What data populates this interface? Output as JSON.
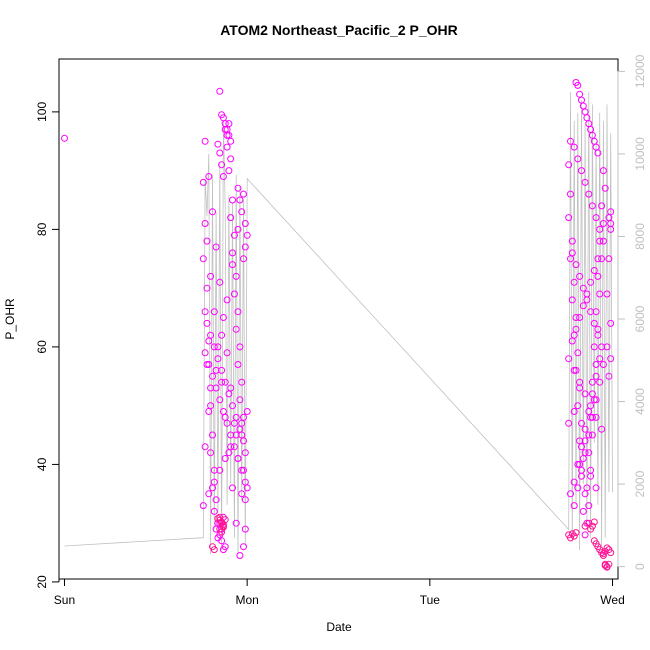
{
  "chart_data": {
    "type": "scatter",
    "title": "ATOM2 Northeast_Pacific_2 P_OHR",
    "xlabel": "Date",
    "ylabel": "P_OHR",
    "xlim": [
      -0.03,
      3.03
    ],
    "ylim": [
      20.5,
      109
    ],
    "y2lim": [
      -300,
      12300
    ],
    "x_ticks": [
      {
        "value": 0,
        "label": "Sun"
      },
      {
        "value": 1,
        "label": "Mon"
      },
      {
        "value": 2,
        "label": "Tue"
      },
      {
        "value": 3,
        "label": "Wed"
      }
    ],
    "y_ticks": [
      20,
      40,
      60,
      80,
      100
    ],
    "y2_ticks": [
      0,
      2000,
      4000,
      6000,
      8000,
      10000,
      12000
    ],
    "colors": {
      "points": "#ff00ff",
      "points_late": "#ff1493",
      "line": "#c0c0c0",
      "axis": "#000000",
      "right_axis": "#c0c0c0"
    },
    "series": [
      {
        "kind": "points",
        "color": "#ff00ff",
        "x": [
          0.0,
          0.76,
          0.77,
          0.76,
          0.78,
          0.77,
          0.79,
          0.78,
          0.8,
          0.79,
          0.81,
          0.8,
          0.82,
          0.81,
          0.83,
          0.82,
          0.84,
          0.83,
          0.85,
          0.84,
          0.86,
          0.85,
          0.87,
          0.86,
          0.88,
          0.87,
          0.89,
          0.88,
          0.9,
          0.89,
          0.91,
          0.9,
          0.92,
          0.91,
          0.93,
          0.92,
          0.94,
          0.93,
          0.95,
          0.94,
          0.96,
          0.95,
          0.97,
          0.96,
          0.98,
          0.97,
          0.99,
          0.98,
          1.0,
          0.99,
          0.77,
          0.79,
          0.81,
          0.83,
          0.85,
          0.87,
          0.89,
          0.91,
          0.93,
          0.95,
          0.97,
          0.99,
          0.78,
          0.8,
          0.82,
          0.84,
          0.86,
          0.88,
          0.9,
          0.92,
          0.94,
          0.96,
          0.98,
          0.77,
          0.8,
          0.83,
          0.86,
          0.89,
          0.92,
          0.95,
          0.98,
          0.85,
          0.86,
          0.87,
          0.88,
          0.89,
          0.9,
          0.91,
          0.84,
          0.85,
          0.86,
          0.87,
          0.95,
          0.96,
          0.97,
          0.99,
          1.0,
          0.99,
          0.98,
          0.77,
          0.79,
          0.81,
          0.83,
          0.85,
          0.87,
          0.89,
          0.91,
          0.93,
          0.95,
          0.97,
          0.99,
          0.78,
          0.8,
          0.82,
          0.84,
          0.86,
          0.88,
          0.9,
          0.92,
          0.94,
          0.96,
          0.98,
          0.76,
          0.79,
          0.82,
          0.85,
          0.88,
          0.91,
          0.94,
          0.97,
          1.0
        ],
        "y": [
          95.5,
          88,
          81,
          75,
          70,
          66,
          61,
          57,
          53,
          49,
          45,
          42,
          39,
          36,
          34,
          32,
          30,
          29,
          28,
          27.5,
          27,
          30,
          31,
          29,
          26,
          25.5,
          94,
          97,
          98,
          96,
          92,
          90,
          85,
          82,
          79,
          76,
          72,
          69,
          66,
          63,
          60,
          57,
          54,
          51,
          48,
          45,
          42,
          39,
          36,
          34,
          95,
          89,
          83,
          77,
          71,
          65,
          59,
          53,
          47,
          41,
          35,
          29,
          78,
          72,
          66,
          60,
          54,
          48,
          42,
          36,
          30,
          24.5,
          26,
          43,
          50,
          56,
          62,
          68,
          74,
          80,
          86,
          103.5,
          99.5,
          99,
          98,
          97,
          96,
          95,
          94.5,
          93,
          91,
          89,
          87,
          85,
          83,
          81,
          79,
          77,
          75,
          59,
          57,
          55,
          53,
          51,
          49,
          47,
          45,
          43,
          41,
          39,
          37,
          64,
          62,
          60,
          58,
          56,
          54,
          52,
          50,
          48,
          46,
          44,
          33,
          35,
          37,
          39,
          41,
          43,
          45,
          47,
          49
        ]
      },
      {
        "kind": "points",
        "color": "#ff00ff",
        "x": [
          2.76,
          2.77,
          2.76,
          2.78,
          2.77,
          2.79,
          2.78,
          2.8,
          2.79,
          2.81,
          2.8,
          2.82,
          2.81,
          2.83,
          2.82,
          2.84,
          2.83,
          2.85,
          2.84,
          2.86,
          2.85,
          2.87,
          2.86,
          2.88,
          2.87,
          2.89,
          2.88,
          2.9,
          2.89,
          2.91,
          2.9,
          2.92,
          2.91,
          2.93,
          2.92,
          2.94,
          2.93,
          2.95,
          2.94,
          2.96,
          2.95,
          2.77,
          2.79,
          2.81,
          2.83,
          2.85,
          2.87,
          2.89,
          2.91,
          2.93,
          2.95,
          2.78,
          2.8,
          2.82,
          2.84,
          2.86,
          2.88,
          2.9,
          2.92,
          2.94,
          2.76,
          2.79,
          2.82,
          2.85,
          2.88,
          2.91,
          2.94,
          2.8,
          2.81,
          2.82,
          2.83,
          2.84,
          2.85,
          2.86,
          2.87,
          2.88,
          2.89,
          2.9,
          2.91,
          2.92,
          2.79,
          2.81,
          2.83,
          2.85,
          2.87,
          2.89,
          2.91,
          2.93,
          2.95,
          2.97,
          2.99,
          2.98,
          2.99,
          2.99,
          2.98,
          2.97,
          2.99,
          2.99,
          2.98,
          2.77,
          2.79,
          2.81,
          2.83,
          2.85,
          2.87,
          2.89,
          2.91,
          2.93,
          2.78,
          2.8,
          2.82,
          2.84,
          2.86,
          2.88,
          2.9,
          2.92,
          2.76,
          2.79,
          2.82,
          2.85,
          2.88,
          2.91
        ],
        "y": [
          91,
          86,
          82,
          78,
          75,
          71,
          68,
          65,
          62,
          59,
          56,
          53,
          50,
          47,
          44,
          41,
          38,
          35,
          32,
          30,
          28,
          33,
          36,
          39,
          42,
          45,
          48,
          51,
          54,
          57,
          60,
          63,
          66,
          69,
          72,
          75,
          78,
          81,
          84,
          87,
          90,
          95,
          94,
          92,
          90,
          88,
          86,
          84,
          82,
          80,
          78,
          76,
          74,
          72,
          70,
          68,
          66,
          64,
          62,
          60,
          58,
          56,
          54,
          52,
          50,
          48,
          46,
          105,
          104.5,
          103,
          102,
          101,
          100,
          99,
          98,
          97,
          96,
          95,
          94,
          93,
          33,
          36,
          39,
          42,
          45,
          48,
          51,
          54,
          57,
          60,
          83,
          82,
          81,
          80,
          75,
          69,
          64,
          58,
          55,
          35,
          37,
          40,
          43,
          46,
          49,
          52,
          55,
          58,
          61,
          63,
          65,
          67,
          69,
          71,
          73,
          75,
          47,
          49,
          40,
          44,
          38,
          36
        ]
      },
      {
        "kind": "points",
        "color": "#ff1493",
        "x": [
          0.85,
          0.86,
          0.87,
          0.84,
          0.85,
          0.86,
          0.87,
          0.88,
          0.85,
          0.86,
          0.87,
          0.81,
          0.82,
          2.76,
          2.77,
          2.78,
          2.79,
          2.8,
          2.85,
          2.87,
          2.88,
          2.89,
          2.9,
          2.9,
          2.91,
          2.92,
          2.93,
          2.94,
          2.95,
          2.96,
          2.97,
          2.98,
          2.96,
          2.97,
          2.98,
          2.99,
          2.95,
          2.96,
          2.97
        ],
        "y": [
          30.5,
          30,
          29.5,
          30.8,
          31,
          30.2,
          29.8,
          30.6,
          29,
          28.5,
          29.3,
          26,
          25.5,
          28,
          27.5,
          28.2,
          27.8,
          28.4,
          29.5,
          30,
          29,
          29.5,
          30.2,
          27,
          26.5,
          26,
          25.5,
          25,
          24.5,
          23,
          22.5,
          23,
          22.8,
          22.6,
          25.5,
          25,
          24.8,
          25.2,
          25.8
        ]
      }
    ],
    "line_series": {
      "kind": "line",
      "color": "#c0c0c0",
      "axis": "right",
      "x": [
        0.0,
        0.76,
        0.77,
        0.78,
        0.79,
        0.8,
        0.81,
        0.82,
        0.83,
        0.84,
        0.85,
        0.86,
        0.87,
        0.88,
        0.89,
        0.9,
        0.91,
        0.92,
        0.93,
        0.94,
        0.95,
        0.96,
        0.97,
        0.98,
        0.99,
        1.0,
        2.76,
        2.77,
        2.78,
        2.79,
        2.8,
        2.81,
        2.82,
        2.83,
        2.84,
        2.85,
        2.86,
        2.87,
        2.88,
        2.89,
        2.9,
        2.91,
        2.92,
        2.93,
        2.94,
        2.95,
        2.96,
        2.97,
        2.98,
        2.99,
        3.0
      ],
      "y": [
        500,
        700,
        9400,
        8500,
        10000,
        300,
        9500,
        900,
        8600,
        1200,
        9800,
        400,
        10800,
        8700,
        1500,
        9000,
        2000,
        8800,
        700,
        9500,
        300,
        9200,
        1600,
        8900,
        500,
        9400,
        900,
        11500,
        600,
        10800,
        1500,
        11000,
        400,
        11300,
        2000,
        10700,
        1000,
        11500,
        700,
        11200,
        3000,
        10300,
        1500,
        11000,
        500,
        10800,
        700,
        11200,
        1800,
        10500,
        1800
      ]
    }
  }
}
